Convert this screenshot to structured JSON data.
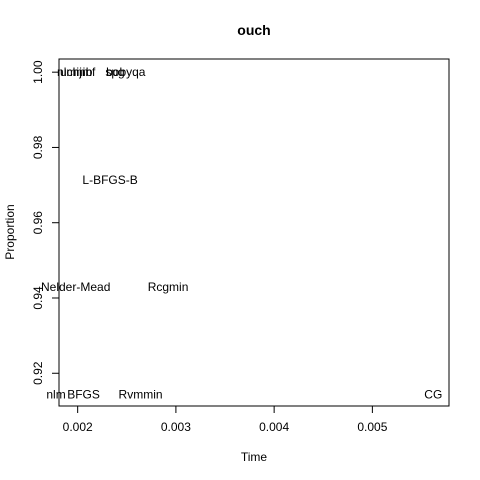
{
  "chart_data": {
    "type": "scatter",
    "title": "ouch",
    "xlabel": "Time",
    "ylabel": "Proportion",
    "xlim": [
      0.00181,
      0.00578
    ],
    "ylim": [
      0.9113,
      1.0035
    ],
    "x_ticks": [
      "0.002",
      "0.003",
      "0.004",
      "0.005"
    ],
    "y_ticks": [
      "0.92",
      "0.94",
      "0.96",
      "0.98",
      "1.00"
    ],
    "grid": false,
    "legend": "none",
    "points": [
      {
        "label": "nlminb",
        "x": 0.00197,
        "y": 1.0
      },
      {
        "label": "ucminf",
        "x": 0.002,
        "y": 1.0
      },
      {
        "label": "hjn",
        "x": 0.00203,
        "y": 1.0
      },
      {
        "label": "spg",
        "x": 0.00238,
        "y": 1.0
      },
      {
        "label": "bobyqa",
        "x": 0.00249,
        "y": 1.0
      },
      {
        "label": "L-BFGS-B",
        "x": 0.00233,
        "y": 0.9714
      },
      {
        "label": "Nelder-Mead",
        "x": 0.00198,
        "y": 0.9429
      },
      {
        "label": "Rcgmin",
        "x": 0.00292,
        "y": 0.9429
      },
      {
        "label": "nlm",
        "x": 0.00178,
        "y": 0.9143
      },
      {
        "label": "BFGS",
        "x": 0.00206,
        "y": 0.9143
      },
      {
        "label": "Rvmmin",
        "x": 0.00264,
        "y": 0.9143
      },
      {
        "label": "CG",
        "x": 0.00562,
        "y": 0.9143
      }
    ]
  }
}
